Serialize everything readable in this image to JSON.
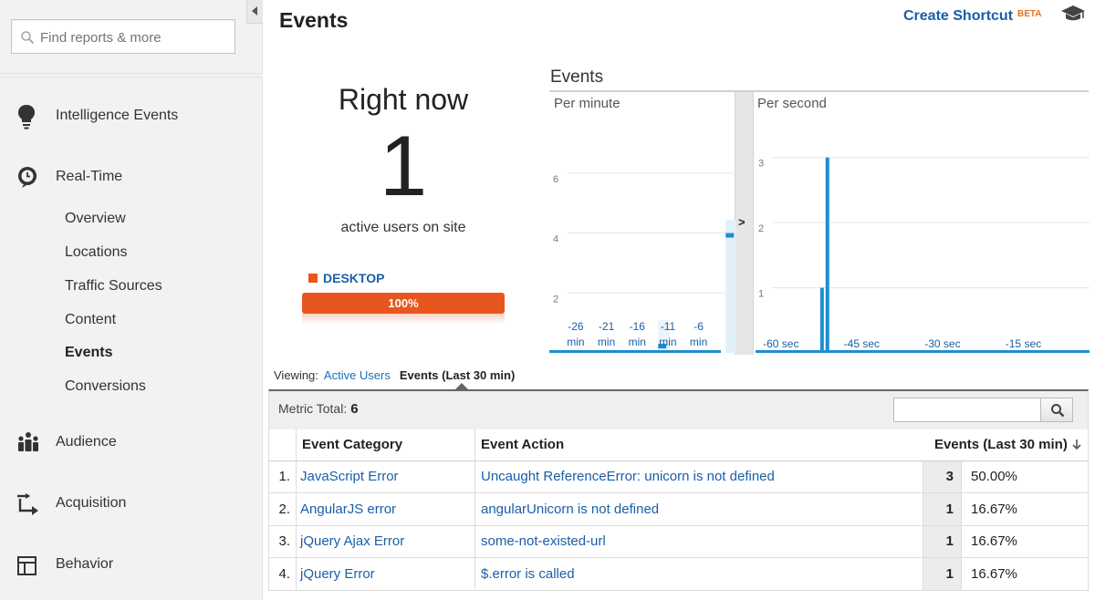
{
  "sidebar": {
    "search_placeholder": "Find reports & more",
    "intelligence": {
      "label": "Intelligence Events",
      "icon": "lightbulb-icon"
    },
    "realtime": {
      "label": "Real-Time",
      "icon": "clock-icon",
      "items": [
        "Overview",
        "Locations",
        "Traffic Sources",
        "Content",
        "Events",
        "Conversions"
      ],
      "active": "Events"
    },
    "audience": {
      "label": "Audience",
      "icon": "people-icon"
    },
    "acquisition": {
      "label": "Acquisition",
      "icon": "arrows-icon"
    },
    "behavior": {
      "label": "Behavior",
      "icon": "layout-icon"
    }
  },
  "header": {
    "title": "Events",
    "shortcut_label": "Create Shortcut",
    "beta_label": "BETA",
    "grad_icon": "graduation-cap-icon"
  },
  "right_now": {
    "title": "Right now",
    "count": "1",
    "subtitle": "active users on site",
    "device": {
      "label": "DESKTOP",
      "percent_label": "100%",
      "fraction": 1.0,
      "color": "#e8561f"
    }
  },
  "chart_data": [
    {
      "type": "bar",
      "title": "Events",
      "subtitle": "Per minute",
      "ylim": [
        0,
        7
      ],
      "y_ticks": [
        "6",
        "4",
        "2"
      ],
      "x_ticks": [
        {
          "top": "-26",
          "bottom": "min"
        },
        {
          "top": "-21",
          "bottom": "min"
        },
        {
          "top": "-16",
          "bottom": "min"
        },
        {
          "top": "-11",
          "bottom": "min"
        },
        {
          "top": "-6",
          "bottom": "min"
        }
      ],
      "series": [
        {
          "values": [
            {
              "x": -12,
              "y": 0.3
            },
            {
              "x": -1,
              "y": 4
            }
          ]
        }
      ],
      "color": "#1a8fd1"
    },
    {
      "type": "bar",
      "subtitle": "Per second",
      "ylim": [
        0,
        3.5
      ],
      "y_ticks": [
        "3",
        "2",
        "1"
      ],
      "x_ticks": [
        "-60 sec",
        "-45 sec",
        "-30 sec",
        "-15 sec"
      ],
      "series": [
        {
          "values": [
            {
              "x": -50,
              "y": 1
            },
            {
              "x": -49,
              "y": 3
            }
          ]
        }
      ],
      "color": "#1a8fd1"
    }
  ],
  "viewing": {
    "label": "Viewing:",
    "option_a": "Active Users",
    "option_b": "Events (Last 30 min)"
  },
  "metric": {
    "label": "Metric Total:",
    "value": "6"
  },
  "table": {
    "headers": {
      "category": "Event Category",
      "action": "Event Action",
      "events": "Events (Last 30 min)"
    },
    "rows": [
      {
        "idx": "1.",
        "category": "JavaScript Error",
        "action": "Uncaught ReferenceError: unicorn is not defined",
        "count": "3",
        "pct": "50.00%"
      },
      {
        "idx": "2.",
        "category": "AngularJS error",
        "action": "angularUnicorn is not defined",
        "count": "1",
        "pct": "16.67%"
      },
      {
        "idx": "3.",
        "category": "jQuery Ajax Error",
        "action": "some-not-existed-url",
        "count": "1",
        "pct": "16.67%"
      },
      {
        "idx": "4.",
        "category": "jQuery Error",
        "action": "$.error is called",
        "count": "1",
        "pct": "16.67%"
      }
    ]
  }
}
